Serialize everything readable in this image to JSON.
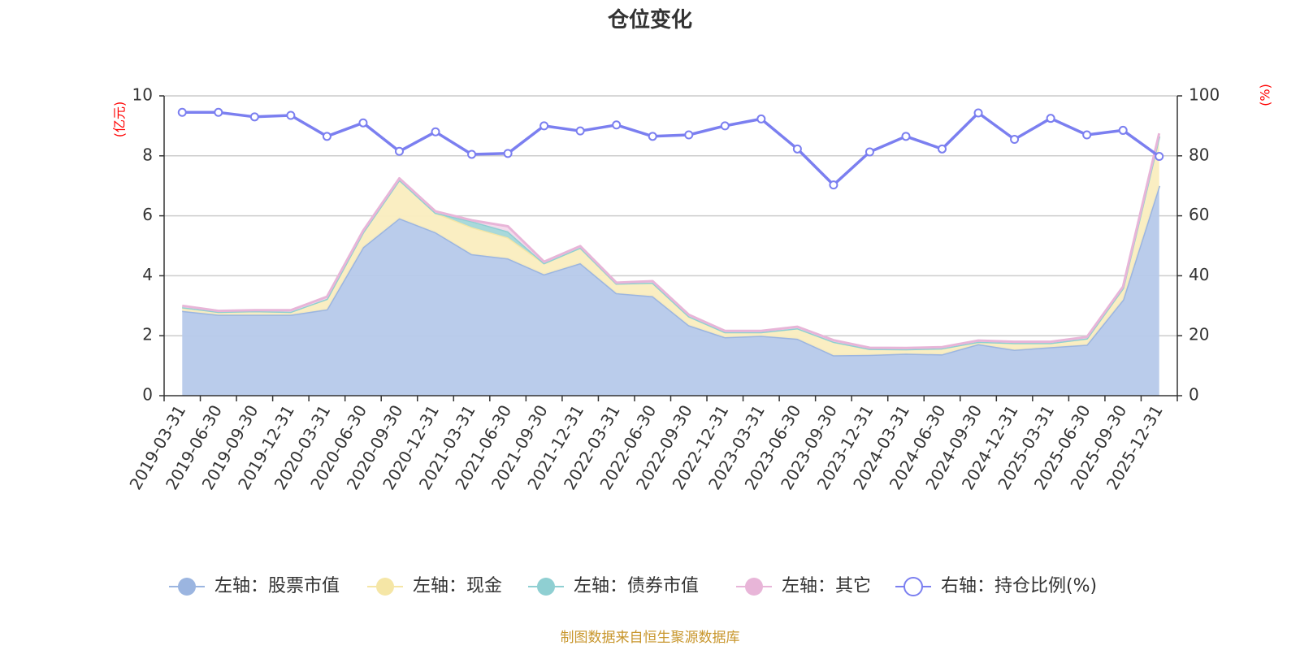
{
  "chart_data": {
    "type": "area",
    "title": "仓位变化",
    "left_axis_unit": "(亿元)",
    "right_axis_unit": "(%)",
    "left_ylim": [
      0,
      10
    ],
    "right_ylim": [
      0,
      100
    ],
    "left_ticks": [
      "0",
      "2",
      "4",
      "6",
      "8",
      "10"
    ],
    "right_ticks": [
      "0",
      "20",
      "40",
      "60",
      "80",
      "100"
    ],
    "categories": [
      "2019-03-31",
      "2019-06-30",
      "2019-09-30",
      "2019-12-31",
      "2020-03-31",
      "2020-06-30",
      "2020-09-30",
      "2020-12-31",
      "2021-03-31",
      "2021-06-30",
      "2021-09-30",
      "2021-12-31",
      "2022-03-31",
      "2022-06-30",
      "2022-09-30",
      "2022-12-31",
      "2023-03-31",
      "2023-06-30",
      "2023-09-30",
      "2023-12-31",
      "2024-03-31",
      "2024-06-30",
      "2024-09-30",
      "2024-12-31",
      "2025-03-31",
      "2025-06-30",
      "2025-09-30",
      "2025-12-31"
    ],
    "series": [
      {
        "name": "左轴：股票市值",
        "axis": "left",
        "stacked": true,
        "color": "#9bb5e0",
        "fill": "#b6c9ea",
        "values": [
          2.83,
          2.7,
          2.7,
          2.7,
          2.88,
          4.95,
          5.92,
          5.45,
          4.72,
          4.58,
          4.05,
          4.42,
          3.42,
          3.32,
          2.35,
          1.95,
          2.0,
          1.9,
          1.35,
          1.36,
          1.4,
          1.38,
          1.72,
          1.53,
          1.62,
          1.7,
          3.2,
          7.0
        ]
      },
      {
        "name": "左轴：现金",
        "axis": "left",
        "stacked": true,
        "color": "#f5e6a6",
        "fill": "#faedbf",
        "values": [
          0.12,
          0.1,
          0.12,
          0.1,
          0.35,
          0.5,
          1.28,
          0.65,
          0.9,
          0.7,
          0.37,
          0.52,
          0.32,
          0.45,
          0.3,
          0.17,
          0.12,
          0.35,
          0.45,
          0.2,
          0.15,
          0.2,
          0.08,
          0.23,
          0.14,
          0.21,
          0.39,
          1.65
        ]
      },
      {
        "name": "左轴：债券市值",
        "axis": "left",
        "stacked": true,
        "color": "#8fcfd2",
        "fill": "#a3d7d9",
        "values": [
          0,
          0,
          0,
          0,
          0,
          0,
          0,
          0,
          0.2,
          0.2,
          0,
          0,
          0,
          0,
          0,
          0,
          0,
          0,
          0,
          0,
          0,
          0,
          0,
          0,
          0,
          0,
          0,
          0
        ]
      },
      {
        "name": "左轴：其它",
        "axis": "left",
        "stacked": true,
        "color": "#e8b5d8",
        "fill": "#f4d9eb",
        "values": [
          0.05,
          0.03,
          0.03,
          0.05,
          0.07,
          0.05,
          0.05,
          0.05,
          0.03,
          0.17,
          0.05,
          0.05,
          0.03,
          0.05,
          0.05,
          0.04,
          0.04,
          0.05,
          0.05,
          0.04,
          0.04,
          0.04,
          0.04,
          0.04,
          0.04,
          0.05,
          0.05,
          0.1
        ]
      },
      {
        "name": "右轴：持仓比例(%)",
        "axis": "right",
        "stacked": false,
        "color": "#7b7ff0",
        "values": [
          94.5,
          94.5,
          93.0,
          93.5,
          86.5,
          91.0,
          81.5,
          88.0,
          80.5,
          80.8,
          90.0,
          88.3,
          90.3,
          86.5,
          87.0,
          90.0,
          92.3,
          82.3,
          70.3,
          81.3,
          86.5,
          82.3,
          94.3,
          85.5,
          92.5,
          87.0,
          88.5,
          79.8
        ]
      }
    ],
    "source_note": "制图数据来自恒生聚源数据库"
  }
}
